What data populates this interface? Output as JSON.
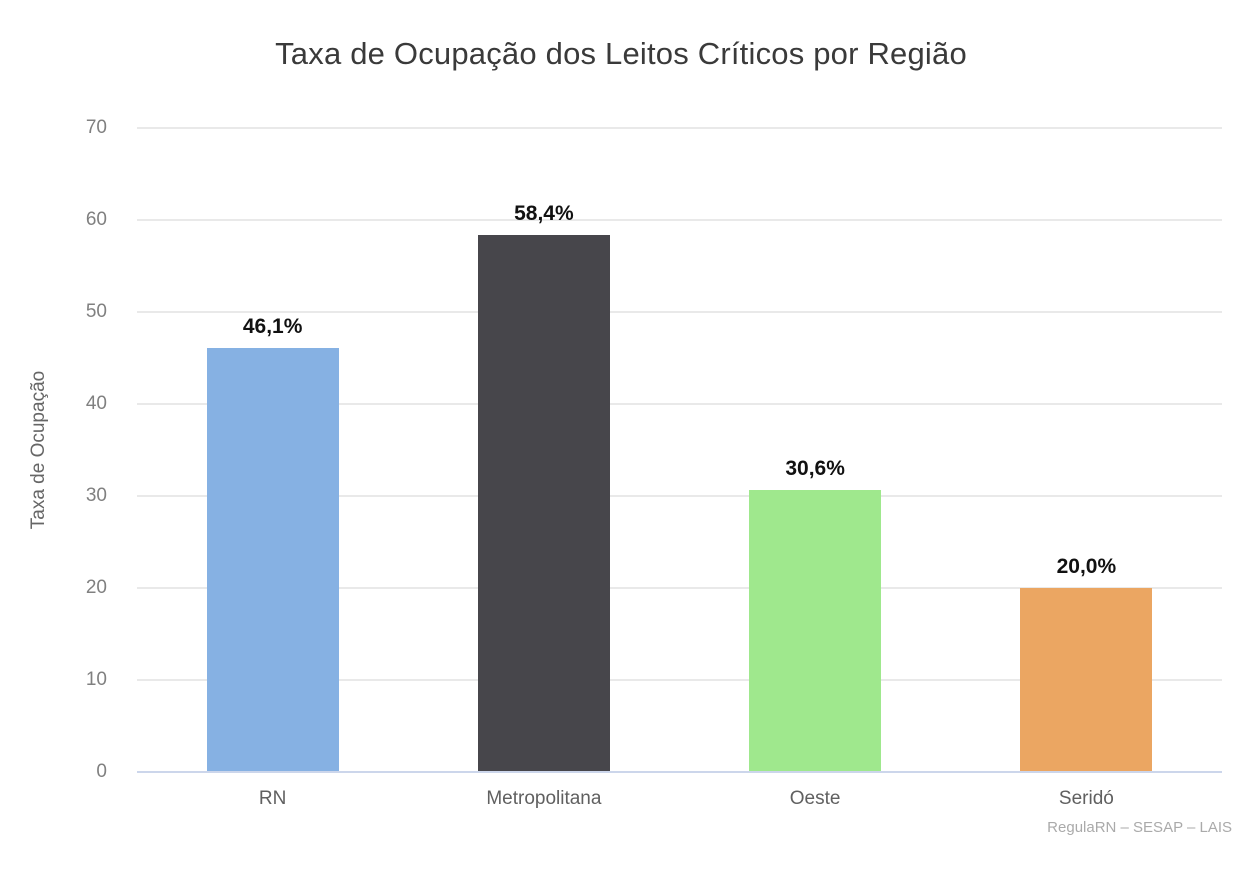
{
  "credit": "RegulaRN – SESAP – LAIS",
  "chart_data": {
    "type": "bar",
    "title": "Taxa de Ocupação dos Leitos Críticos por Região",
    "xlabel": "",
    "ylabel": "Taxa de Ocupação",
    "categories": [
      "RN",
      "Metropolitana",
      "Oeste",
      "Seridó"
    ],
    "values": [
      46.1,
      58.4,
      30.6,
      20.0
    ],
    "value_labels": [
      "46,1%",
      "58,4%",
      "30,6%",
      "20,0%"
    ],
    "colors": [
      "#86b1e3",
      "#47464b",
      "#9fe88d",
      "#eba662"
    ],
    "ylim": [
      0,
      70
    ],
    "yticks": [
      0,
      10,
      20,
      30,
      40,
      50,
      60,
      70
    ],
    "grid": true,
    "legend": "none"
  },
  "style_colors": {
    "title_text": "#3a3a3a",
    "tick_text": "#808080",
    "axis_title_text": "#666666",
    "category_text": "#606060",
    "grid_line": "#e9e9e9",
    "axis_line": "#ccd6eb",
    "value_label_text": "#111111",
    "credit_text": "#aaaaaa",
    "background": "#ffffff"
  }
}
